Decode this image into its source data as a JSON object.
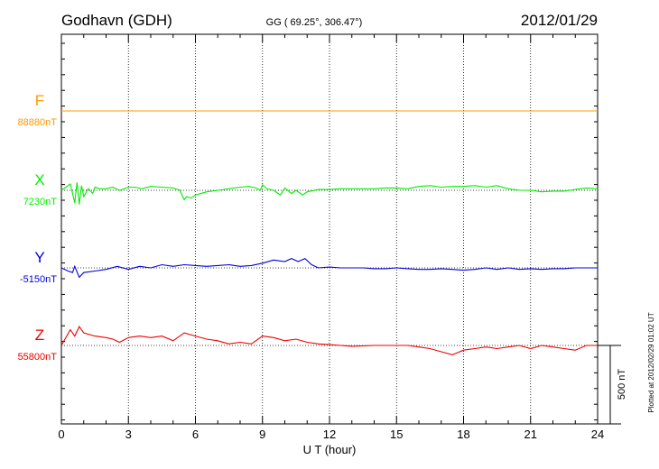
{
  "chart_data": {
    "type": "line",
    "title": "Godhavn (GDH)",
    "coords": "GG ( 69.25°, 306.47°)",
    "date": "2012/01/29",
    "xlabel": "U T (hour)",
    "xlim": [
      0,
      24
    ],
    "xticks": [
      "0",
      "3",
      "6",
      "9",
      "12",
      "15",
      "18",
      "21",
      "24"
    ],
    "scale_label": "500 nT",
    "plotted_note": "Plotted at 2012/02/29 01:02 UT",
    "grid": true,
    "series": [
      {
        "name": "F",
        "baseline_label": "88880nT",
        "color": "#ff9900",
        "x": [
          0,
          24
        ],
        "y": [
          0,
          0
        ]
      },
      {
        "name": "X",
        "baseline_label": "7230nT",
        "color": "#00ee00",
        "x": [
          0,
          0.4,
          0.6,
          0.7,
          0.8,
          0.9,
          1.0,
          1.2,
          1.4,
          1.5,
          1.7,
          2.0,
          2.3,
          2.6,
          3.0,
          3.3,
          3.6,
          4.0,
          4.5,
          5.0,
          5.3,
          5.5,
          5.6,
          5.8,
          6.0,
          6.5,
          7.0,
          7.5,
          8.0,
          8.4,
          8.7,
          8.9,
          9.0,
          9.2,
          9.5,
          9.8,
          10.0,
          10.3,
          10.5,
          10.8,
          11.0,
          11.5,
          12.0,
          12.5,
          13.0,
          13.5,
          14.0,
          14.5,
          15.0,
          15.5,
          16.0,
          16.5,
          17.0,
          17.5,
          18.0,
          18.5,
          19.0,
          19.5,
          20.0,
          20.5,
          21.0,
          21.5,
          22.0,
          22.5,
          23.0,
          23.5,
          24.0
        ],
        "y": [
          0,
          40,
          -80,
          50,
          -90,
          30,
          -40,
          10,
          -20,
          20,
          10,
          10,
          20,
          0,
          20,
          20,
          10,
          25,
          20,
          15,
          0,
          -60,
          -40,
          -50,
          -30,
          -10,
          0,
          10,
          20,
          25,
          15,
          0,
          35,
          10,
          0,
          -30,
          15,
          -20,
          0,
          -30,
          -10,
          5,
          5,
          10,
          10,
          10,
          10,
          15,
          15,
          10,
          25,
          30,
          20,
          25,
          25,
          30,
          20,
          30,
          10,
          0,
          0,
          -10,
          -5,
          -5,
          5,
          15,
          10
        ]
      },
      {
        "name": "Y",
        "baseline_label": "-5150nT",
        "color": "#0000dd",
        "x": [
          0,
          0.3,
          0.5,
          0.6,
          0.8,
          1.0,
          1.5,
          2.0,
          2.5,
          3.0,
          3.5,
          4.0,
          4.5,
          5.0,
          5.5,
          6.0,
          6.5,
          7.0,
          7.5,
          8.0,
          8.5,
          9.0,
          9.5,
          10.0,
          10.3,
          10.6,
          10.9,
          11.2,
          11.5,
          12.0,
          12.5,
          13.0,
          13.5,
          14.0,
          14.5,
          15.0,
          15.5,
          16.0,
          16.5,
          17.0,
          17.5,
          18.0,
          18.5,
          19.0,
          19.5,
          20.0,
          20.5,
          21.0,
          21.5,
          22.0,
          22.5,
          23.0,
          23.5,
          24.0
        ],
        "y": [
          0,
          -20,
          -30,
          10,
          -60,
          -30,
          -20,
          -10,
          10,
          -10,
          10,
          0,
          20,
          10,
          20,
          15,
          10,
          15,
          20,
          10,
          15,
          30,
          50,
          40,
          60,
          40,
          60,
          20,
          0,
          5,
          0,
          0,
          0,
          -5,
          -5,
          0,
          -5,
          -10,
          -10,
          -5,
          -10,
          -15,
          -10,
          0,
          -10,
          0,
          -10,
          -5,
          -10,
          -5,
          -5,
          0,
          0,
          0
        ]
      },
      {
        "name": "Z",
        "baseline_label": "55800nT",
        "color": "#ee0000",
        "x": [
          0,
          0.4,
          0.6,
          0.8,
          1.0,
          1.5,
          2.0,
          2.3,
          2.6,
          3.0,
          3.5,
          4.0,
          4.5,
          5.0,
          5.5,
          6.0,
          6.5,
          7.0,
          7.5,
          8.0,
          8.5,
          9.0,
          9.5,
          10.0,
          10.5,
          11.0,
          11.5,
          12.0,
          12.5,
          13.0,
          14.0,
          15.0,
          15.5,
          16.0,
          16.5,
          17.0,
          17.5,
          18.0,
          18.5,
          19.0,
          19.5,
          20.0,
          20.5,
          21.0,
          21.5,
          22.0,
          22.5,
          23.0,
          23.5,
          24.0
        ],
        "y": [
          0,
          100,
          60,
          120,
          80,
          60,
          50,
          40,
          20,
          50,
          60,
          50,
          60,
          30,
          80,
          60,
          40,
          30,
          10,
          20,
          10,
          60,
          50,
          30,
          40,
          20,
          10,
          5,
          0,
          -5,
          0,
          0,
          0,
          -10,
          -20,
          -40,
          -60,
          -30,
          -20,
          -10,
          -20,
          -10,
          0,
          -20,
          0,
          -10,
          -20,
          -30,
          0,
          0
        ]
      }
    ]
  }
}
